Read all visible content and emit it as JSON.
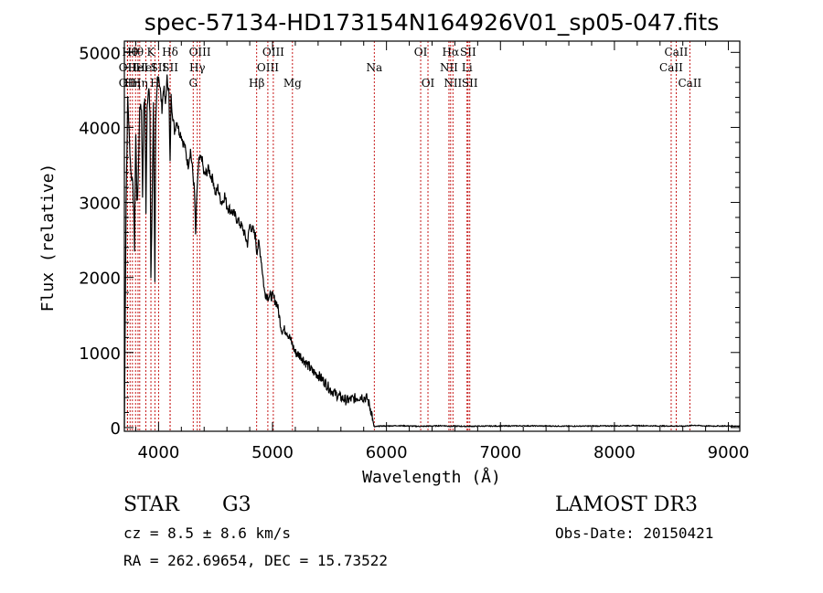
{
  "chart_data": {
    "type": "line",
    "title": "spec-57134-HD173154N164926V01_sp05-047.fits",
    "xlabel": "Wavelength (Å)",
    "ylabel": "Flux (relative)",
    "xlim": [
      3700,
      9100
    ],
    "ylim": [
      -50,
      5150
    ],
    "xticks": [
      4000,
      5000,
      6000,
      7000,
      8000,
      9000
    ],
    "yticks": [
      0,
      1000,
      2000,
      3000,
      4000,
      5000
    ],
    "grid": false,
    "series": [
      {
        "name": "spectrum",
        "x": [
          3700,
          3715,
          3730,
          3745,
          3760,
          3775,
          3790,
          3800,
          3810,
          3820,
          3835,
          3850,
          3860,
          3870,
          3880,
          3889,
          3900,
          3915,
          3925,
          3933,
          3940,
          3955,
          3968,
          3975,
          3990,
          4000,
          4015,
          4030,
          4045,
          4060,
          4075,
          4090,
          4101,
          4110,
          4125,
          4140,
          4160,
          4180,
          4200,
          4215,
          4230,
          4245,
          4260,
          4280,
          4300,
          4315,
          4325,
          4340,
          4355,
          4380,
          4400,
          4420,
          4440,
          4460,
          4480,
          4500,
          4520,
          4540,
          4560,
          4580,
          4600,
          4630,
          4660,
          4700,
          4740,
          4780,
          4800,
          4820,
          4850,
          4861,
          4880,
          4900,
          4930,
          4960,
          5000,
          5040,
          5080,
          5120,
          5150,
          5200,
          5250,
          5300,
          5350,
          5400,
          5450,
          5500,
          5550,
          5600,
          5650,
          5700,
          5750,
          5780,
          5800,
          5830,
          5850,
          5870,
          5880,
          5890,
          5895,
          5900,
          5920,
          5950,
          6000,
          6100,
          6200,
          6300,
          6400,
          6500,
          6562,
          6600,
          6700,
          6800,
          7000,
          7200,
          7400,
          7600,
          7800,
          8000,
          8200,
          8400,
          8500,
          8600,
          8700,
          8800,
          9000,
          9100
        ],
        "values": [
          0,
          3000,
          4400,
          3800,
          3350,
          3300,
          2400,
          3950,
          3000,
          3200,
          4300,
          4250,
          3100,
          4300,
          4350,
          2900,
          4350,
          4500,
          4200,
          2000,
          2600,
          4300,
          1900,
          4000,
          4650,
          4700,
          4500,
          4250,
          4550,
          4300,
          4650,
          4500,
          3500,
          4400,
          4150,
          3950,
          4100,
          3950,
          3900,
          3800,
          3750,
          3600,
          3500,
          3700,
          3400,
          3150,
          2550,
          3250,
          3550,
          3600,
          3350,
          3400,
          3450,
          3350,
          3300,
          3100,
          3200,
          3050,
          3000,
          3100,
          2950,
          2900,
          2850,
          2750,
          2650,
          2450,
          2700,
          2650,
          2550,
          2350,
          2450,
          2250,
          1800,
          1750,
          1750,
          1650,
          1300,
          1300,
          1200,
          1000,
          950,
          850,
          750,
          700,
          620,
          520,
          450,
          400,
          360,
          380,
          400,
          420,
          400,
          390,
          300,
          200,
          100,
          20,
          5,
          10,
          15,
          20,
          20,
          25,
          20,
          15,
          20,
          25,
          15,
          20,
          15,
          18,
          20,
          22,
          20,
          18,
          20,
          22,
          25,
          20,
          20,
          18,
          30,
          20,
          20,
          20
        ]
      }
    ],
    "lines": [
      {
        "lambda": 3727,
        "label": "OII",
        "row": 2
      },
      {
        "lambda": 3727,
        "label": "OII",
        "row": 3
      },
      {
        "lambda": 3750,
        "label": "Hθ",
        "row": 1
      },
      {
        "lambda": 3771,
        "label": "Hη",
        "row": 3
      },
      {
        "lambda": 3798,
        "label": "Hθ",
        "row": 1
      },
      {
        "lambda": 3820,
        "label": "HeI",
        "row": 2
      },
      {
        "lambda": 3835,
        "label": "Hη",
        "row": 3
      },
      {
        "lambda": 3889,
        "label": "HeI",
        "row": 2
      },
      {
        "lambda": 3933,
        "label": "K",
        "row": 1
      },
      {
        "lambda": 3968,
        "label": "H",
        "row": 3
      },
      {
        "lambda": 4000,
        "label": "SII",
        "row": 2
      },
      {
        "lambda": 4101,
        "label": "Hδ",
        "row": 1
      },
      {
        "lambda": 4102,
        "label": "SII",
        "row": 2
      },
      {
        "lambda": 4304,
        "label": "G",
        "row": 3
      },
      {
        "lambda": 4340,
        "label": "Hγ",
        "row": 2
      },
      {
        "lambda": 4363,
        "label": "OIII",
        "row": 1
      },
      {
        "lambda": 4861,
        "label": "Hβ",
        "row": 3
      },
      {
        "lambda": 4959,
        "label": "OIII",
        "row": 2
      },
      {
        "lambda": 5007,
        "label": "OIII",
        "row": 1
      },
      {
        "lambda": 5175,
        "label": "Mg",
        "row": 3
      },
      {
        "lambda": 5893,
        "label": "Na",
        "row": 2
      },
      {
        "lambda": 6300,
        "label": "OI",
        "row": 1
      },
      {
        "lambda": 6364,
        "label": "OI",
        "row": 3
      },
      {
        "lambda": 6548,
        "label": "NII",
        "row": 2
      },
      {
        "lambda": 6563,
        "label": "Hα",
        "row": 1
      },
      {
        "lambda": 6583,
        "label": "NII",
        "row": 3
      },
      {
        "lambda": 6707,
        "label": "Li",
        "row": 2
      },
      {
        "lambda": 6716,
        "label": "SII",
        "row": 1
      },
      {
        "lambda": 6731,
        "label": "SII",
        "row": 3
      },
      {
        "lambda": 8498,
        "label": "CaII",
        "row": 2
      },
      {
        "lambda": 8542,
        "label": "CaII",
        "row": 1
      },
      {
        "lambda": 8662,
        "label": "CaII",
        "row": 3
      }
    ],
    "line_color": "#c00000",
    "spectrum_color": "#000000"
  },
  "info": {
    "object_type": "STAR",
    "subclass": "G3",
    "survey": "LAMOST DR3",
    "cz": "cz = 8.5 ± 8.6 km/s",
    "obs_date": "Obs-Date: 20150421",
    "coords": "RA = 262.69654, DEC =  15.73522"
  }
}
